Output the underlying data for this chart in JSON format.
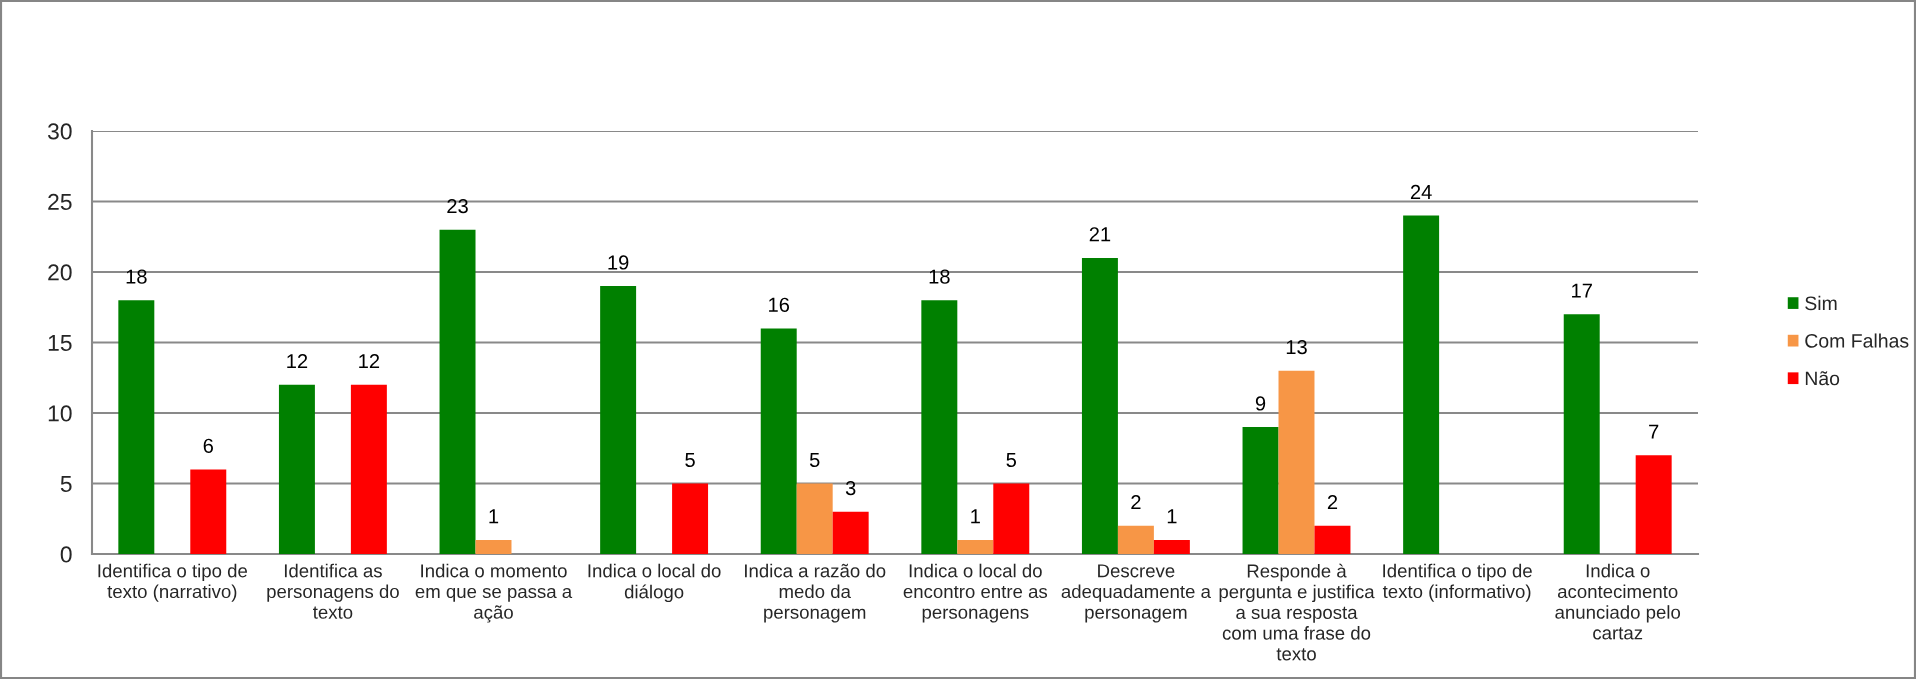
{
  "chart_data": {
    "type": "bar",
    "categories": [
      "Identifica o tipo de texto (narrativo)",
      "Identifica as personagens do texto",
      "Indica o momento em que se passa a ação",
      "Indica o local do diálogo",
      "Indica a razão do medo da personagem",
      "Indica o local do encontro entre as personagens",
      "Descreve adequadamente a personagem",
      "Responde à pergunta e justifica a sua resposta com uma frase do texto",
      "Identifica o tipo de texto (informativo)",
      "Indica o acontecimento anunciado pelo cartaz"
    ],
    "series": [
      {
        "name": "Sim",
        "color": "#008000",
        "values": [
          18,
          12,
          23,
          19,
          16,
          18,
          21,
          9,
          24,
          17
        ]
      },
      {
        "name": "Com Falhas",
        "color": "#f79646",
        "values": [
          null,
          null,
          1,
          null,
          5,
          1,
          2,
          13,
          null,
          null
        ]
      },
      {
        "name": "Não",
        "color": "#ff0000",
        "values": [
          6,
          12,
          null,
          5,
          3,
          5,
          1,
          2,
          null,
          7
        ]
      }
    ],
    "ylim": [
      0,
      30
    ],
    "yticks": [
      0,
      5,
      10,
      15,
      20,
      25,
      30
    ],
    "grid": "y",
    "legend": "right",
    "data_labels": true
  }
}
